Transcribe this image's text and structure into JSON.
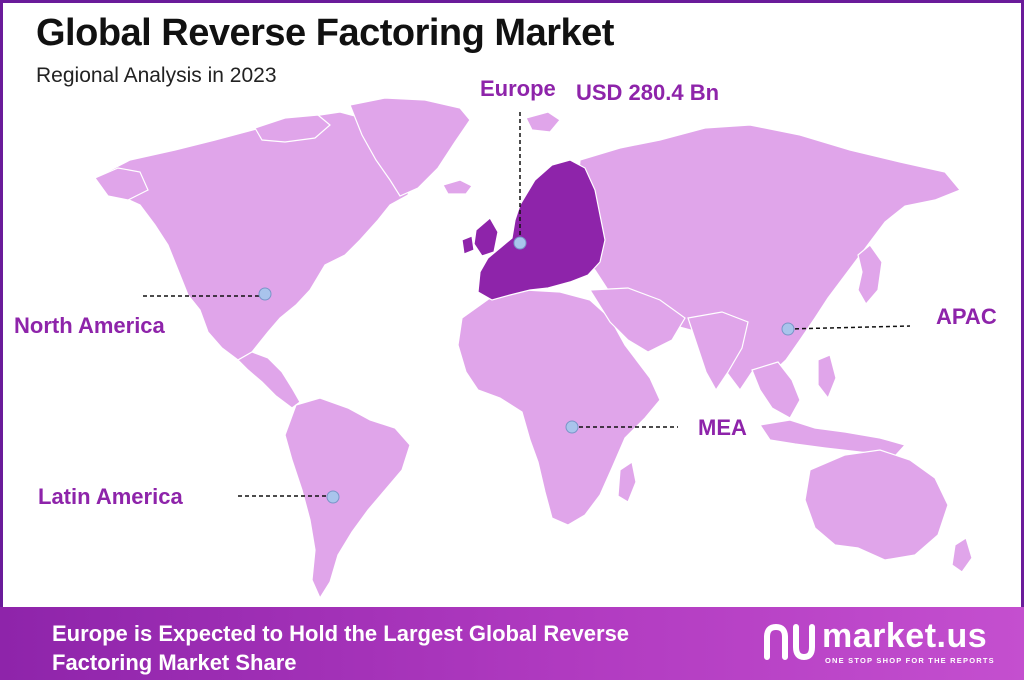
{
  "title": "Global Reverse Factoring Market",
  "subtitle": "Regional Analysis in 2023",
  "colors": {
    "land": "#e0a5ea",
    "highlight": "#8e24aa",
    "accent_text": "#8e24aa",
    "marker": "#a9c4ec",
    "footer": "#8e24aa"
  },
  "regions": {
    "europe": {
      "name": "Europe",
      "value": "USD 280.4 Bn",
      "highlighted": true
    },
    "north_america": {
      "name": "North America"
    },
    "apac": {
      "name": "APAC"
    },
    "mea": {
      "name": "MEA"
    },
    "latin_america": {
      "name": "Latin America"
    }
  },
  "footer": {
    "text": "Europe is Expected to Hold the Largest Global Reverse Factoring Market Share"
  },
  "brand": {
    "name": "market.us",
    "tagline": "ONE STOP SHOP FOR THE REPORTS",
    "logo_icon": "market-us-logo-icon"
  }
}
